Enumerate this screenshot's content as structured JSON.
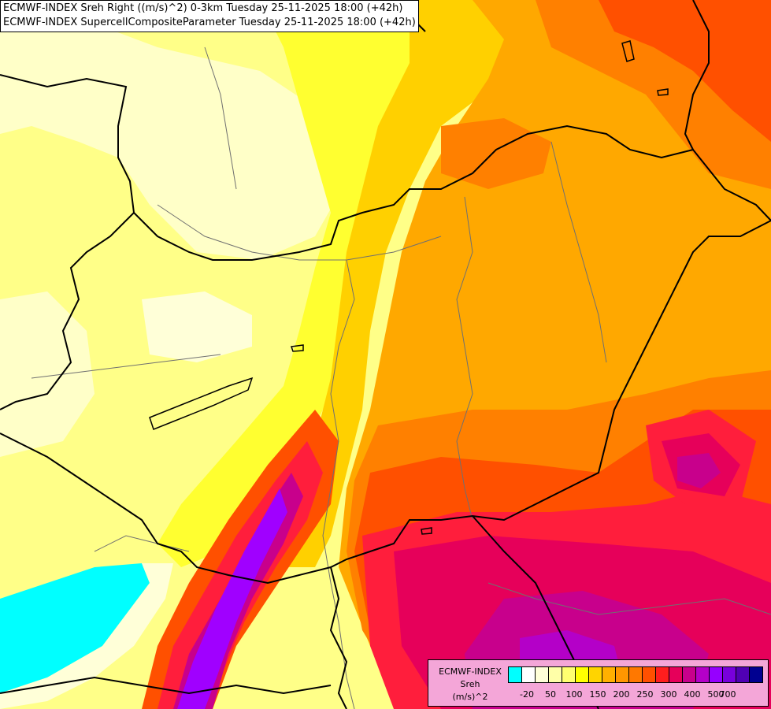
{
  "titles": {
    "line1": "ECMWF-INDEX Sreh Right ((m/s)^2) 0-3km Tuesday 25-11-2025 18:00 (+42h)",
    "line2": "ECMWF-INDEX SupercellCompositeParameter Tuesday 25-11-2025 18:00 (+42h)"
  },
  "legend": {
    "line1": "ECMWF-INDEX",
    "line2": "Sreh",
    "line3": "(m/s)^2",
    "colors": [
      "#00ffff",
      "#ffffff",
      "#ffffd8",
      "#ffffa8",
      "#ffff70",
      "#ffff00",
      "#ffd400",
      "#ffb000",
      "#ff9600",
      "#ff7800",
      "#ff5000",
      "#ff1e1e",
      "#e6005a",
      "#c8008c",
      "#b400c8",
      "#9600ff",
      "#7800dc",
      "#5000b4",
      "#000090"
    ],
    "ticks": [
      "-20",
      "50",
      "100",
      "150",
      "200",
      "250",
      "300",
      "400",
      "500",
      "700"
    ]
  },
  "map_colors": {
    "cyan": "#00ffff",
    "pale": "#ffffd0",
    "lightyellow": "#ffff90",
    "yellow": "#ffff00",
    "gold": "#ffd000",
    "orange": "#ffa800",
    "darkorange": "#ff8000",
    "redorange": "#ff5000",
    "red": "#ff1e3c",
    "crimson": "#e6005a",
    "magenta": "#c8008c",
    "purple": "#a000ff",
    "border": "#000000",
    "river": "#707070"
  }
}
